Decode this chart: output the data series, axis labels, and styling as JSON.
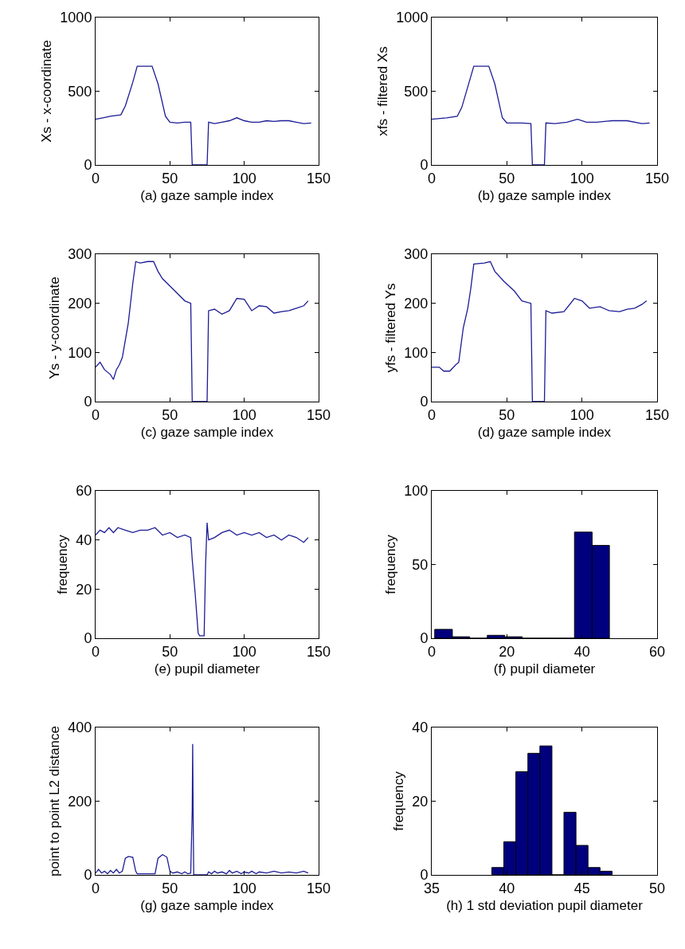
{
  "chart_data": [
    {
      "type": "line",
      "xlabel": "(a) gaze sample index",
      "ylabel": "Xs - x-coordinate",
      "color": "#1c1c96",
      "grid": false,
      "xlim": [
        0,
        150
      ],
      "ylim": [
        0,
        1000
      ],
      "xticks": [
        0,
        50,
        100,
        150
      ],
      "yticks": [
        0,
        500,
        1000
      ],
      "x": [
        0,
        5,
        10,
        17,
        20,
        25,
        28,
        38,
        42,
        47,
        50,
        55,
        60,
        64,
        65,
        75,
        76,
        80,
        85,
        90,
        95,
        100,
        105,
        110,
        115,
        120,
        125,
        130,
        135,
        140,
        145
      ],
      "values": [
        310,
        320,
        330,
        340,
        400,
        560,
        670,
        670,
        550,
        330,
        290,
        285,
        290,
        290,
        0,
        0,
        290,
        280,
        290,
        300,
        320,
        300,
        290,
        290,
        300,
        295,
        300,
        300,
        290,
        280,
        285
      ]
    },
    {
      "type": "line",
      "xlabel": "(b) gaze sample index",
      "ylabel": "xfs - filtered Xs",
      "color": "#1c1c96",
      "grid": false,
      "xlim": [
        0,
        150
      ],
      "ylim": [
        0,
        1000
      ],
      "xticks": [
        0,
        50,
        100,
        150
      ],
      "yticks": [
        0,
        500,
        1000
      ],
      "x": [
        0,
        10,
        17,
        20,
        28,
        38,
        42,
        47,
        50,
        60,
        66,
        67,
        75,
        76,
        82,
        90,
        97,
        103,
        110,
        120,
        130,
        140,
        145
      ],
      "values": [
        310,
        320,
        330,
        390,
        670,
        670,
        550,
        320,
        285,
        285,
        280,
        0,
        0,
        285,
        280,
        290,
        310,
        290,
        290,
        300,
        300,
        280,
        285
      ]
    },
    {
      "type": "line",
      "xlabel": "(c) gaze sample index",
      "ylabel": "Ys - y-coordinate",
      "color": "#1c1c96",
      "grid": false,
      "xlim": [
        0,
        150
      ],
      "ylim": [
        0,
        300
      ],
      "xticks": [
        0,
        50,
        100,
        150
      ],
      "yticks": [
        0,
        100,
        200,
        300
      ],
      "x": [
        0,
        3,
        6,
        10,
        12,
        14,
        16,
        18,
        22,
        25,
        27,
        30,
        35,
        39,
        42,
        45,
        50,
        55,
        60,
        64,
        65,
        75,
        76,
        80,
        85,
        90,
        95,
        100,
        105,
        110,
        115,
        120,
        125,
        130,
        135,
        140,
        143
      ],
      "values": [
        70,
        80,
        65,
        55,
        45,
        65,
        75,
        90,
        160,
        240,
        285,
        282,
        285,
        285,
        265,
        250,
        235,
        220,
        205,
        200,
        0,
        0,
        185,
        188,
        178,
        185,
        210,
        208,
        185,
        195,
        193,
        180,
        183,
        185,
        190,
        195,
        205
      ]
    },
    {
      "type": "line",
      "xlabel": "(d) gaze sample index",
      "ylabel": "yfs - filtered Ys",
      "color": "#1c1c96",
      "grid": false,
      "xlim": [
        0,
        150
      ],
      "ylim": [
        0,
        300
      ],
      "xticks": [
        0,
        50,
        100,
        150
      ],
      "yticks": [
        0,
        100,
        200,
        300
      ],
      "x": [
        0,
        5,
        8,
        12,
        16,
        18,
        21,
        24,
        26,
        28,
        35,
        39,
        42,
        48,
        55,
        60,
        66,
        67,
        75,
        76,
        80,
        88,
        95,
        100,
        105,
        112,
        118,
        125,
        130,
        135,
        140,
        143
      ],
      "values": [
        70,
        70,
        62,
        62,
        75,
        80,
        150,
        190,
        230,
        280,
        282,
        285,
        265,
        245,
        225,
        205,
        200,
        0,
        0,
        185,
        180,
        183,
        210,
        205,
        190,
        193,
        185,
        183,
        188,
        190,
        198,
        205
      ]
    },
    {
      "type": "line",
      "xlabel": "(e) pupil diameter",
      "ylabel": "frequency",
      "color": "#1c1c96",
      "grid": false,
      "xlim": [
        0,
        150
      ],
      "ylim": [
        0,
        60
      ],
      "xticks": [
        0,
        50,
        100,
        150
      ],
      "yticks": [
        0,
        20,
        40,
        60
      ],
      "x": [
        0,
        3,
        6,
        9,
        12,
        15,
        20,
        25,
        30,
        35,
        40,
        45,
        50,
        55,
        60,
        64,
        65,
        67,
        69,
        70,
        73,
        74,
        75,
        76,
        80,
        85,
        90,
        95,
        100,
        105,
        110,
        115,
        120,
        125,
        130,
        135,
        140,
        143
      ],
      "values": [
        42,
        44,
        43,
        45,
        43,
        45,
        44,
        43,
        44,
        44,
        45,
        42,
        43,
        41,
        42,
        41,
        32,
        18,
        2,
        1,
        1,
        30,
        47,
        40,
        41,
        43,
        44,
        42,
        43,
        42,
        43,
        41,
        42,
        40,
        42,
        41,
        39,
        41
      ]
    },
    {
      "type": "histogram",
      "xlabel": "(f) pupil diameter",
      "ylabel": "frequency",
      "color": "#00007f",
      "grid": false,
      "xlim": [
        0,
        60
      ],
      "ylim": [
        0,
        100
      ],
      "xticks": [
        0,
        20,
        40,
        60
      ],
      "yticks": [
        0,
        50,
        100
      ],
      "bins": [
        0.8,
        5.5,
        10.1,
        14.8,
        19.4,
        24.1,
        28.7,
        33.4,
        38,
        42.7,
        47.3
      ],
      "values": [
        6,
        1,
        0,
        2,
        1,
        0,
        0,
        0,
        72,
        63
      ]
    },
    {
      "type": "line",
      "xlabel": "(g) gaze sample index",
      "ylabel": "point to point L2 distance",
      "color": "#1c1c96",
      "grid": false,
      "xlim": [
        0,
        150
      ],
      "ylim": [
        0,
        400
      ],
      "xticks": [
        0,
        50,
        100,
        150
      ],
      "yticks": [
        0,
        200,
        400
      ],
      "x": [
        0,
        2,
        4,
        6,
        8,
        10,
        12,
        14,
        16,
        18,
        20,
        22,
        25,
        27,
        28,
        35,
        40,
        42,
        45,
        48,
        50,
        52,
        55,
        58,
        60,
        62,
        64,
        65,
        65.3,
        65.6,
        66,
        75,
        76,
        78,
        80,
        82,
        85,
        88,
        90,
        92,
        95,
        98,
        100,
        103,
        105,
        108,
        110,
        115,
        120,
        125,
        130,
        135,
        140,
        143
      ],
      "values": [
        5,
        15,
        5,
        10,
        3,
        12,
        5,
        15,
        5,
        10,
        45,
        50,
        48,
        10,
        3,
        3,
        3,
        45,
        55,
        48,
        10,
        5,
        8,
        3,
        8,
        3,
        5,
        175,
        355,
        175,
        0,
        0,
        8,
        3,
        10,
        5,
        8,
        3,
        12,
        5,
        10,
        3,
        8,
        5,
        10,
        3,
        8,
        5,
        10,
        5,
        8,
        5,
        10,
        5
      ]
    },
    {
      "type": "histogram",
      "xlabel": "(h) 1 std deviation pupil diameter",
      "ylabel": "frequency",
      "color": "#00007f",
      "grid": false,
      "xlim": [
        35,
        50
      ],
      "ylim": [
        0,
        40
      ],
      "xticks": [
        35,
        40,
        45,
        50
      ],
      "yticks": [
        0,
        20,
        40
      ],
      "bins": [
        39.0,
        39.8,
        40.6,
        41.4,
        42.2,
        43.0,
        43.8,
        44.6,
        45.4,
        46.2,
        47.0
      ],
      "values": [
        2,
        9,
        28,
        33,
        35,
        0,
        17,
        8,
        2,
        1
      ]
    }
  ]
}
